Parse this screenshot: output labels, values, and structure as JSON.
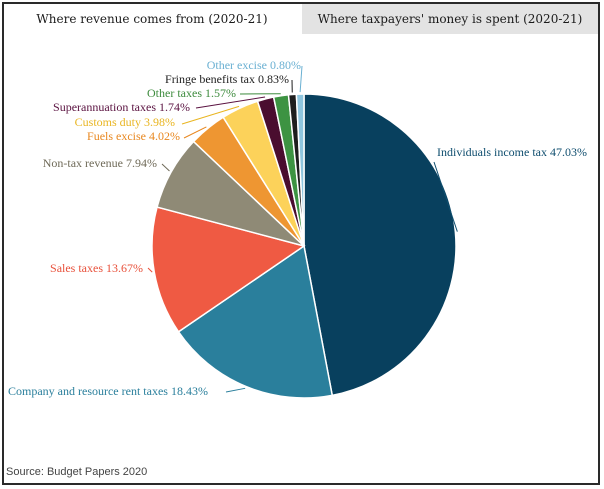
{
  "tabs": {
    "left_label": "Where revenue comes from (2020-21)",
    "right_label": "Where taxpayers' money is spent (2020-21)"
  },
  "source": "Source: Budget Papers 2020",
  "chart_data": {
    "type": "pie",
    "title": "",
    "start_angle_deg": 0,
    "direction": "clockwise",
    "slices": [
      {
        "label": "Individuals income tax 47.03%",
        "value": 47.03,
        "color": "#08405e",
        "label_color": "#0e4d6e"
      },
      {
        "label": "Company and resource rent taxes 18.43%",
        "value": 18.43,
        "color": "#2a7f9c",
        "label_color": "#2a7f9c"
      },
      {
        "label": "Sales taxes 13.67%",
        "value": 13.67,
        "color": "#ef5a43",
        "label_color": "#e8513b"
      },
      {
        "label": "Non-tax revenue 7.94%",
        "value": 7.94,
        "color": "#8f8a76",
        "label_color": "#6f6a58"
      },
      {
        "label": "Fuels excise 4.02%",
        "value": 4.02,
        "color": "#ee9632",
        "label_color": "#e8871f"
      },
      {
        "label": "Customs duty 3.98%",
        "value": 3.98,
        "color": "#fcd25a",
        "label_color": "#e9b520"
      },
      {
        "label": "Superannuation taxes 1.74%",
        "value": 1.74,
        "color": "#4a0d2f",
        "label_color": "#5a1240"
      },
      {
        "label": "Other taxes 1.57%",
        "value": 1.57,
        "color": "#3d9342",
        "label_color": "#3d8b3d"
      },
      {
        "label": "Fringe benefits tax 0.83%",
        "value": 0.83,
        "color": "#1e1e1e",
        "label_color": "#1e1e1e"
      },
      {
        "label": "Other excise 0.80%",
        "value": 0.8,
        "color": "#8fc6df",
        "label_color": "#6ab0d2"
      }
    ]
  }
}
